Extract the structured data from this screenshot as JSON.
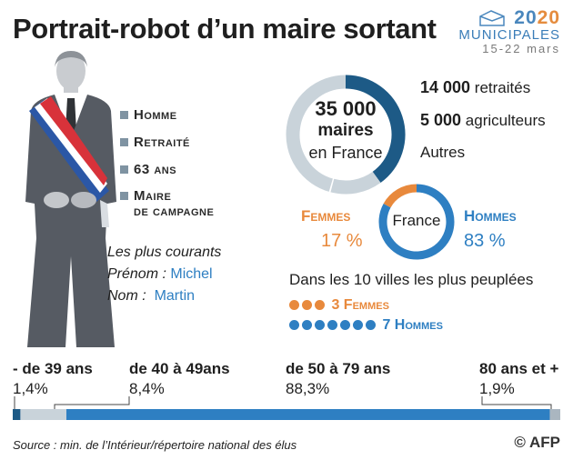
{
  "title": "Portrait-robot d’un maire sortant",
  "logo": {
    "year_a": "20",
    "year_b": "20",
    "name": "MUNICIPALES",
    "dates": "15-22 mars"
  },
  "profile": {
    "items": [
      "Homme",
      "Retraité",
      "63 ans"
    ],
    "item4_line1": "Maire",
    "item4_line2": "de campagne"
  },
  "courants": {
    "title": "Les plus courants",
    "prenom_label": "Prénom  :",
    "prenom": "Michel",
    "nom_label": "Nom :",
    "nom": "Martin"
  },
  "mayors": {
    "center_line1": "35 000",
    "center_line2": "maires",
    "center_line3": "en France",
    "stats": [
      {
        "number": "14 000",
        "label": "retraités"
      },
      {
        "number": "5 000",
        "label": "agriculteurs"
      },
      {
        "number": "",
        "label": "Autres"
      }
    ]
  },
  "gender": {
    "center": "France",
    "women_label": "Femmes",
    "women_pct": "17 %",
    "men_label": "Hommes",
    "men_pct": "83 %"
  },
  "villes": {
    "title": "Dans les 10 villes les plus peuplées",
    "women_text": "3 Femmes",
    "men_text": "7 Hommes"
  },
  "ages": {
    "groups": [
      {
        "label": "- de 39 ans",
        "pct": "1,4%"
      },
      {
        "label": "de 40 à 49ans",
        "pct": "8,4%"
      },
      {
        "label": "de 50 à 79 ans",
        "pct": "88,3%"
      },
      {
        "label": "80 ans et +",
        "pct": "1,9%"
      }
    ]
  },
  "source": "Source : min. de l’Intérieur/répertoire national des élus",
  "credit": "© AFP",
  "colors": {
    "dark_blue": "#1d5a86",
    "mid_blue": "#2e7fc2",
    "light_gray": "#c9d3da",
    "orange": "#e8893c",
    "suit": "#565b63"
  },
  "chart_data": [
    {
      "type": "pie",
      "title": "35 000 maires en France",
      "categories": [
        "retraités",
        "agriculteurs",
        "Autres"
      ],
      "values": [
        14000,
        5000,
        16000
      ]
    },
    {
      "type": "pie",
      "title": "France",
      "categories": [
        "Femmes",
        "Hommes"
      ],
      "values": [
        17,
        83
      ]
    },
    {
      "type": "bar",
      "title": "Dans les 10 villes les plus peuplées",
      "categories": [
        "Femmes",
        "Hommes"
      ],
      "values": [
        3,
        7
      ]
    },
    {
      "type": "bar",
      "categories": [
        "- de 39 ans",
        "de 40 à 49ans",
        "de 50 à 79 ans",
        "80 ans et +"
      ],
      "values": [
        1.4,
        8.4,
        88.3,
        1.9
      ]
    }
  ]
}
